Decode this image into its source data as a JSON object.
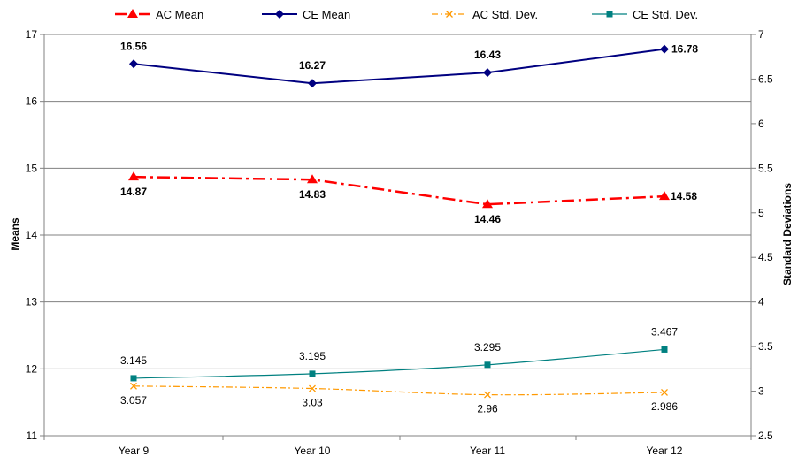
{
  "chart_data": {
    "type": "line",
    "categories": [
      "Year 9",
      "Year 10",
      "Year 11",
      "Year 12"
    ],
    "y_left": {
      "label": "Means",
      "lim": [
        11,
        17
      ],
      "ticks": [
        "11",
        "12",
        "13",
        "14",
        "15",
        "16",
        "17"
      ]
    },
    "y_right": {
      "label": "Standard Deviations",
      "lim": [
        2.5,
        7
      ],
      "ticks": [
        "2.5",
        "3",
        "3.5",
        "4",
        "4.5",
        "5",
        "5.5",
        "6",
        "6.5",
        "7"
      ]
    },
    "grid": true,
    "legend_position": "top",
    "series": [
      {
        "name": "AC Mean",
        "axis": "left",
        "values": [
          14.87,
          14.83,
          14.46,
          14.58
        ],
        "labels": [
          "14.87",
          "14.83",
          "14.46",
          "14.58"
        ],
        "color": "#FF0000",
        "marker": "triangle",
        "style": "dash-dot"
      },
      {
        "name": "CE Mean",
        "axis": "left",
        "values": [
          16.56,
          16.27,
          16.43,
          16.78
        ],
        "labels": [
          "16.56",
          "16.27",
          "16.43",
          "16.78"
        ],
        "color": "#000080",
        "marker": "diamond",
        "style": "solid"
      },
      {
        "name": "AC Std. Dev.",
        "axis": "right",
        "values": [
          3.057,
          3.03,
          2.96,
          2.986
        ],
        "labels": [
          "3.057",
          "3.03",
          "2.96",
          "2.986"
        ],
        "color": "#FF9900",
        "marker": "x",
        "style": "dash-dot"
      },
      {
        "name": "CE Std. Dev.",
        "axis": "right",
        "values": [
          3.145,
          3.195,
          3.295,
          3.467
        ],
        "labels": [
          "3.145",
          "3.195",
          "3.295",
          "3.467"
        ],
        "color": "#008080",
        "marker": "square",
        "style": "solid"
      }
    ]
  }
}
